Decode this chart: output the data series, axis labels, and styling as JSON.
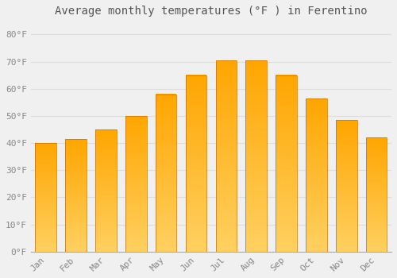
{
  "title": "Average monthly temperatures (°F ) in Ferentino",
  "months": [
    "Jan",
    "Feb",
    "Mar",
    "Apr",
    "May",
    "Jun",
    "Jul",
    "Aug",
    "Sep",
    "Oct",
    "Nov",
    "Dec"
  ],
  "values": [
    40,
    41.5,
    45,
    50,
    58,
    65,
    70.5,
    70.5,
    65,
    56.5,
    48.5,
    42
  ],
  "bar_color_bottom": "#FFD060",
  "bar_color_top": "#FFA500",
  "bar_edge_color": "#C87000",
  "background_color": "#F0F0F0",
  "grid_color": "#DDDDDD",
  "title_fontsize": 10,
  "tick_fontsize": 8,
  "ylim": [
    0,
    85
  ],
  "yticks": [
    0,
    10,
    20,
    30,
    40,
    50,
    60,
    70,
    80
  ],
  "bar_width": 0.7,
  "n_grad": 80
}
